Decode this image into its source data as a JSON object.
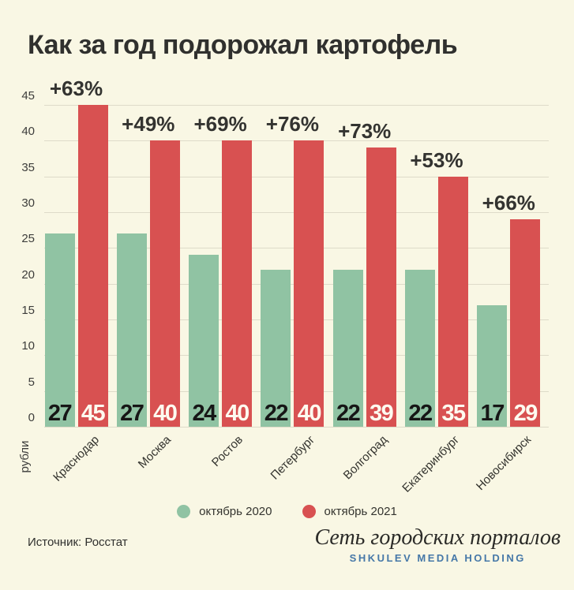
{
  "title": "Как за год подорожал картофель",
  "chart_data": {
    "type": "bar",
    "categories": [
      "Краснодар",
      "Москва",
      "Ростов",
      "Петербург",
      "Волгоград",
      "Екатеринбург",
      "Новосибирск"
    ],
    "series": [
      {
        "name": "октябрь 2020",
        "color": "#90c3a3",
        "values": [
          27,
          27,
          24,
          22,
          22,
          22,
          17
        ]
      },
      {
        "name": "октябрь 2021",
        "color": "#d85151",
        "values": [
          45,
          40,
          40,
          40,
          39,
          35,
          29
        ]
      }
    ],
    "pct_labels": [
      "+63%",
      "+49%",
      "+69%",
      "+76%",
      "+73%",
      "+53%",
      "+66%"
    ],
    "ylabel": "рубли",
    "yticks": [
      0,
      5,
      10,
      15,
      20,
      25,
      30,
      35,
      40,
      45
    ],
    "ylim": [
      0,
      45
    ],
    "grid": true,
    "legend_position": "bottom-center",
    "value_labels_inside_bars": true
  },
  "legend": {
    "items": [
      {
        "label": "октябрь 2020",
        "color": "#90c3a3"
      },
      {
        "label": "октябрь 2021",
        "color": "#d85151"
      }
    ]
  },
  "footer": {
    "source": "Источник: Росстат",
    "brand_serif": "Сеть городских порталов",
    "brand_caps": "SHKULEV MEDIA HOLDING"
  },
  "colors": {
    "background": "#f9f7e4",
    "bar_2020": "#90c3a3",
    "bar_2021": "#d85151",
    "gridline": "#dedbc9",
    "text_dark": "#30302e",
    "brand_blue": "#4678a8"
  }
}
